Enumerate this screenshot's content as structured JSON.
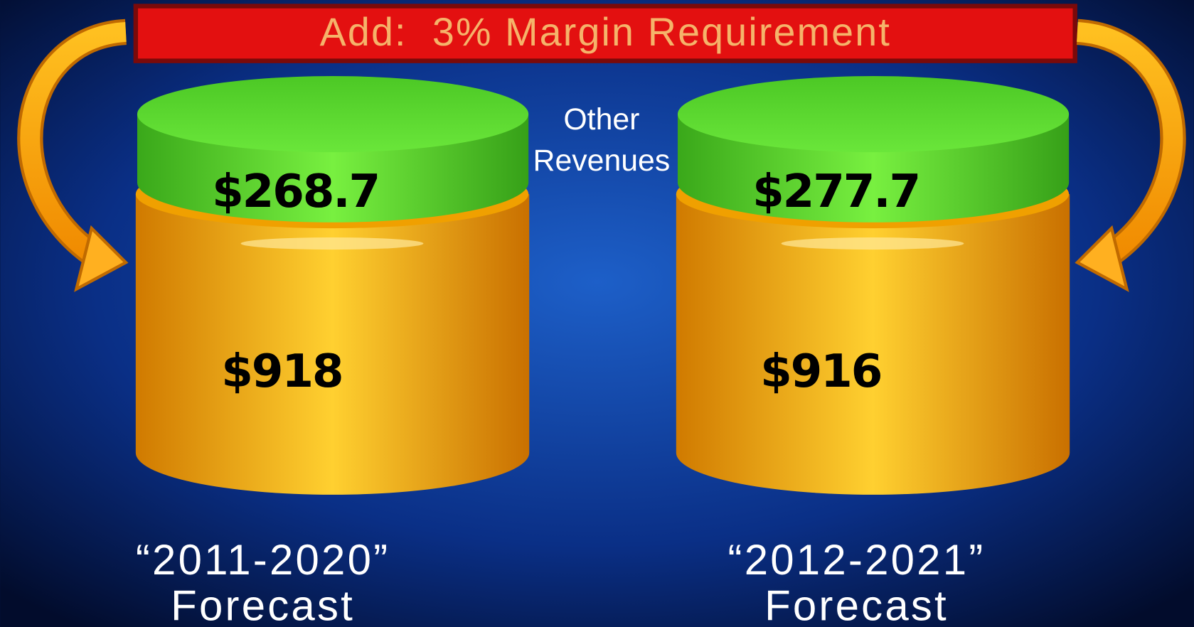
{
  "banner": {
    "text": "Add:  3% Margin Requirement"
  },
  "label": {
    "lines": [
      "Other",
      "Revenues"
    ]
  },
  "cylinders": [
    {
      "top_value": "$268.7",
      "bottom_value": "$918",
      "period": "“2011-2020”",
      "caption": "Forecast"
    },
    {
      "top_value": "$277.7",
      "bottom_value": "$916",
      "period": "“2012-2021”",
      "caption": "Forecast"
    }
  ]
}
